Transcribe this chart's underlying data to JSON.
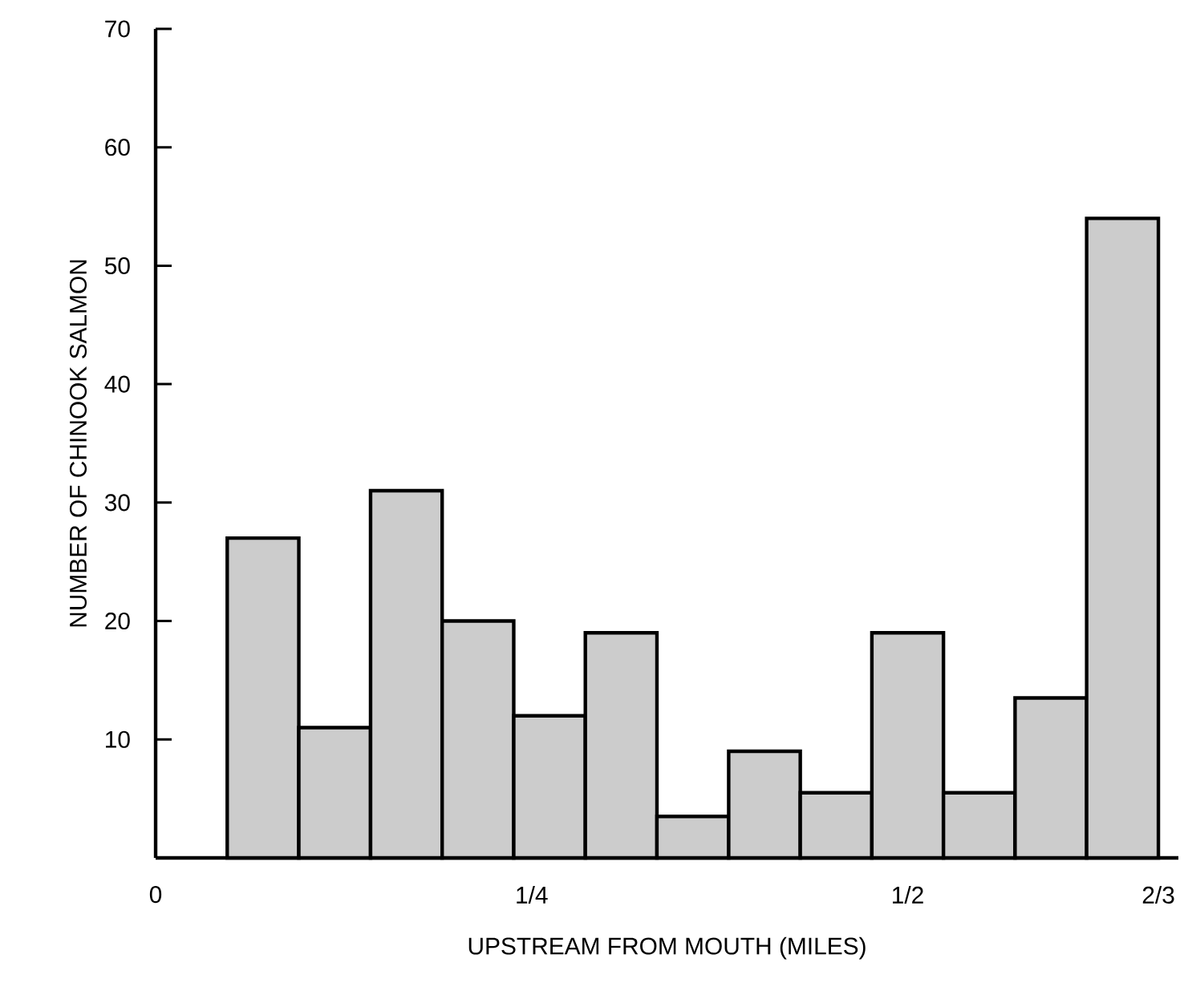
{
  "chart_data": {
    "type": "histogram",
    "xlabel": "UPSTREAM FROM MOUTH (MILES)",
    "ylabel": "NUMBER OF CHINOOK SALMON",
    "bins": [
      0.0476,
      0.0952,
      0.1429,
      0.1905,
      0.2381,
      0.2857,
      0.3333,
      0.381,
      0.4286,
      0.4762,
      0.5238,
      0.5714,
      0.619,
      0.6667
    ],
    "values": [
      27,
      11,
      31,
      20,
      12,
      19,
      3.5,
      9,
      5.5,
      19,
      5.5,
      13.5,
      54
    ],
    "color": "#cccccc",
    "xlim": [
      0,
      0.68
    ],
    "ylim": [
      0,
      70
    ],
    "xticks": [
      0,
      {
        "value": 0.25,
        "label": "1/4"
      },
      {
        "value": 0.5,
        "label": "1/2"
      },
      {
        "value": 0.6667,
        "label": "2/3"
      }
    ],
    "yticks": [
      10,
      20,
      30,
      40,
      50,
      60,
      70
    ],
    "grid": false
  }
}
